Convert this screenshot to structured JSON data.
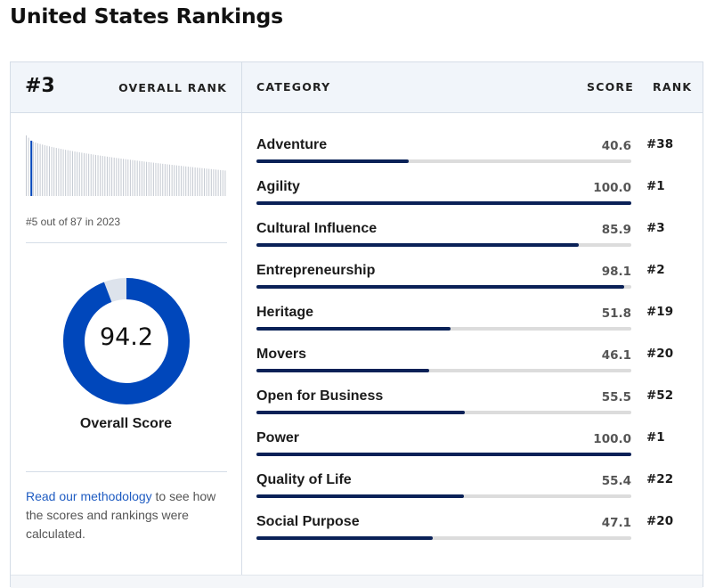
{
  "page": {
    "title": "United States Rankings"
  },
  "overall": {
    "rank": "#3",
    "rank_label": "OVERALL RANK",
    "previous_rank_text": "#5 out of 87 in 2023",
    "score": "94.2",
    "score_value": 94.2,
    "score_label": "Overall Score",
    "sparkline": {
      "highlight_position": 3,
      "country_count": 87
    }
  },
  "table": {
    "headers": {
      "category": "CATEGORY",
      "score": "SCORE",
      "rank": "RANK"
    },
    "rows": [
      {
        "name": "Adventure",
        "score": "40.6",
        "value": 40.6,
        "rank": "#38"
      },
      {
        "name": "Agility",
        "score": "100.0",
        "value": 100.0,
        "rank": "#1"
      },
      {
        "name": "Cultural Influence",
        "score": "85.9",
        "value": 85.9,
        "rank": "#3"
      },
      {
        "name": "Entrepreneurship",
        "score": "98.1",
        "value": 98.1,
        "rank": "#2"
      },
      {
        "name": "Heritage",
        "score": "51.8",
        "value": 51.8,
        "rank": "#19"
      },
      {
        "name": "Movers",
        "score": "46.1",
        "value": 46.1,
        "rank": "#20"
      },
      {
        "name": "Open for Business",
        "score": "55.5",
        "value": 55.5,
        "rank": "#52"
      },
      {
        "name": "Power",
        "score": "100.0",
        "value": 100.0,
        "rank": "#1"
      },
      {
        "name": "Quality of Life",
        "score": "55.4",
        "value": 55.4,
        "rank": "#22"
      },
      {
        "name": "Social Purpose",
        "score": "47.1",
        "value": 47.1,
        "rank": "#20"
      }
    ]
  },
  "methodology": {
    "link_text": "Read our methodology",
    "rest_text": " to see how the scores and rankings were calculated."
  },
  "colors": {
    "accent_blue": "#0047bb",
    "donut_remainder": "#dde3ec",
    "bar_fill": "#0a2157",
    "bar_track": "#dcdcdc",
    "link": "#1f5cc2"
  }
}
